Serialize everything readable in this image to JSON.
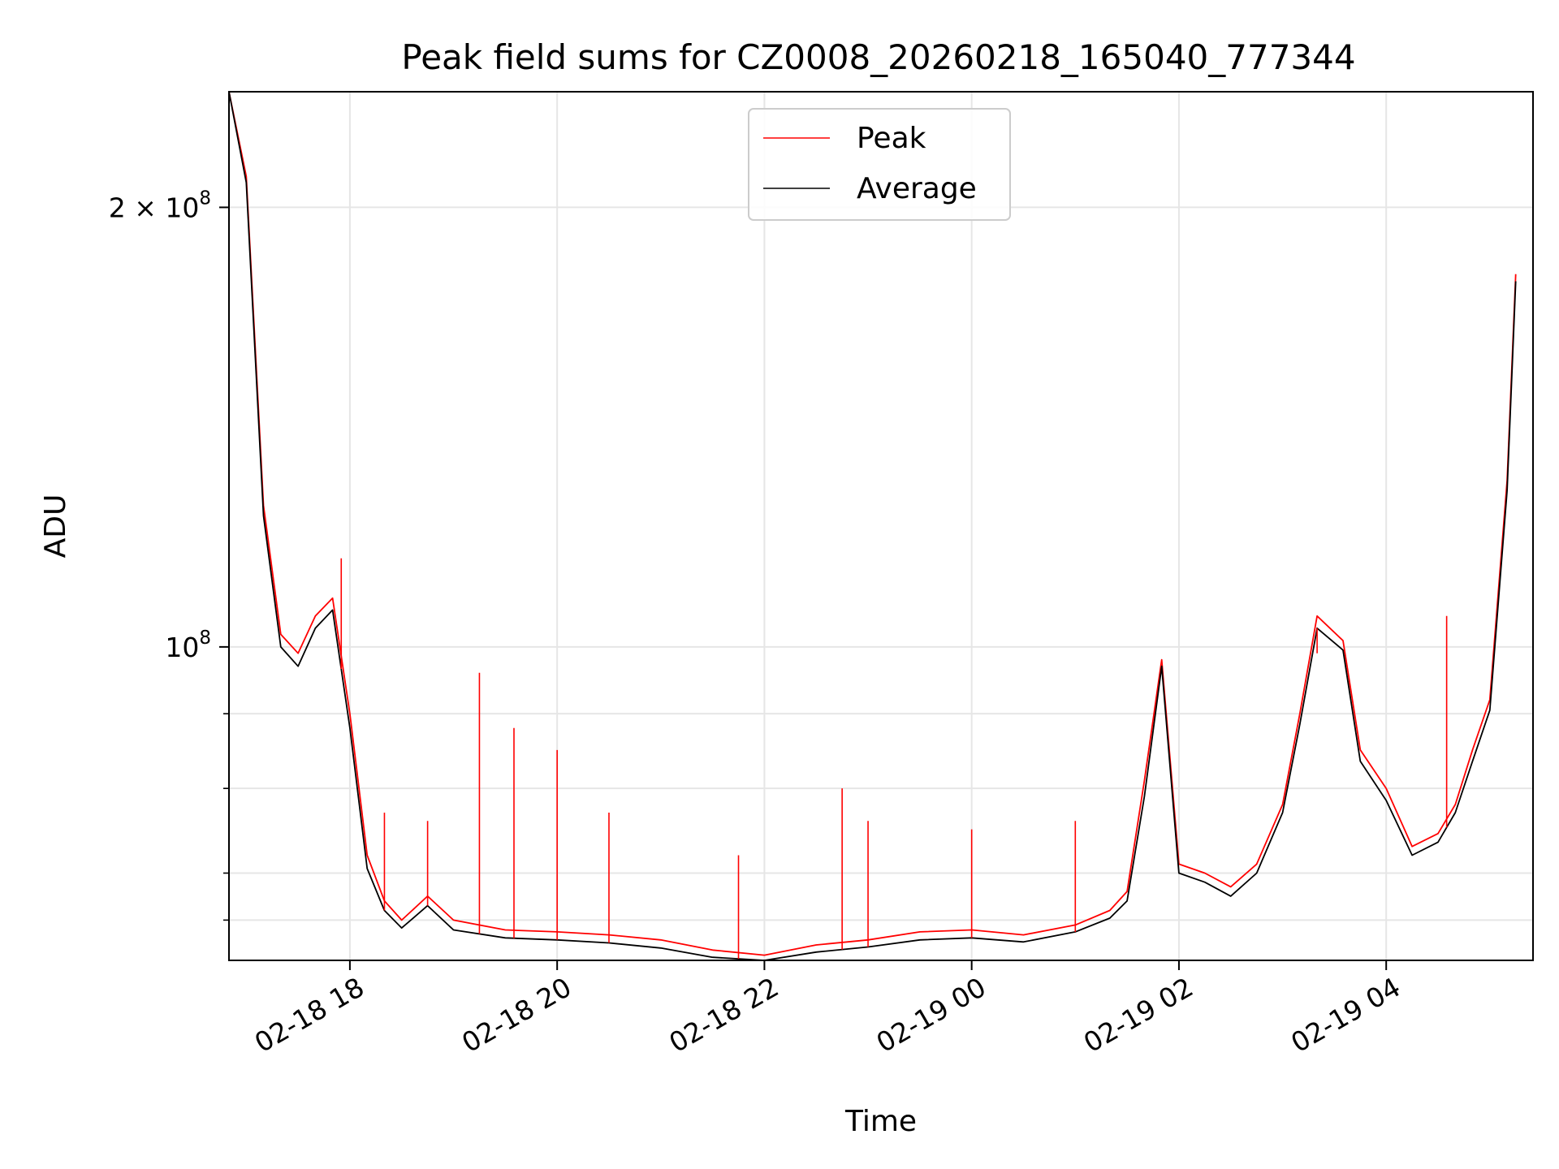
{
  "chart_data": {
    "type": "line",
    "title": "Peak field sums for CZ0008_20260218_165040_777344",
    "xlabel": "Time",
    "ylabel": "ADU",
    "x_axis": "datetime",
    "xlim": [
      "2026-02-18 16:50",
      "2026-02-19 05:25"
    ],
    "y_scale": "log",
    "ylim": [
      61000000,
      240000000
    ],
    "x_ticks": [
      {
        "value": "2026-02-18 18:00",
        "label": "02-18 18"
      },
      {
        "value": "2026-02-18 20:00",
        "label": "02-18 20"
      },
      {
        "value": "2026-02-18 22:00",
        "label": "02-18 22"
      },
      {
        "value": "2026-02-19 00:00",
        "label": "02-19 00"
      },
      {
        "value": "2026-02-19 02:00",
        "label": "02-19 02"
      },
      {
        "value": "2026-02-19 04:00",
        "label": "02-19 04"
      }
    ],
    "y_major_ticks": [
      {
        "value": 100000000,
        "base": "10",
        "exp": "8"
      },
      {
        "value": 200000000,
        "base": "2 × 10",
        "exp": "8"
      }
    ],
    "y_minor_ticks": [
      65000000,
      70000000,
      80000000,
      90000000
    ],
    "grid": true,
    "legend": {
      "position": "top-center",
      "entries": [
        "Peak",
        "Average"
      ]
    },
    "series": [
      {
        "name": "Peak",
        "color": "#ff0000",
        "x": [
          "2026-02-18 16:50",
          "2026-02-18 17:00",
          "2026-02-18 17:10",
          "2026-02-18 17:20",
          "2026-02-18 17:30",
          "2026-02-18 17:40",
          "2026-02-18 17:50",
          "2026-02-18 18:00",
          "2026-02-18 18:10",
          "2026-02-18 18:20",
          "2026-02-18 18:30",
          "2026-02-18 18:45",
          "2026-02-18 19:00",
          "2026-02-18 19:30",
          "2026-02-18 20:00",
          "2026-02-18 20:30",
          "2026-02-18 21:00",
          "2026-02-18 21:30",
          "2026-02-18 22:00",
          "2026-02-18 22:30",
          "2026-02-18 23:00",
          "2026-02-18 23:30",
          "2026-02-19 00:00",
          "2026-02-19 00:30",
          "2026-02-19 01:00",
          "2026-02-19 01:20",
          "2026-02-19 01:30",
          "2026-02-19 01:40",
          "2026-02-19 01:50",
          "2026-02-19 02:00",
          "2026-02-19 02:15",
          "2026-02-19 02:30",
          "2026-02-19 02:45",
          "2026-02-19 03:00",
          "2026-02-19 03:10",
          "2026-02-19 03:20",
          "2026-02-19 03:35",
          "2026-02-19 03:45",
          "2026-02-19 04:00",
          "2026-02-19 04:15",
          "2026-02-19 04:30",
          "2026-02-19 04:40",
          "2026-02-19 04:50",
          "2026-02-19 05:00",
          "2026-02-19 05:10",
          "2026-02-19 05:15"
        ],
        "values": [
          240000000,
          210000000,
          125000000,
          102000000,
          99000000,
          105000000,
          108000000,
          90000000,
          72000000,
          67000000,
          65000000,
          67500000,
          65000000,
          64000000,
          63800000,
          63500000,
          63000000,
          62000000,
          61500000,
          62500000,
          63000000,
          63800000,
          64000000,
          63500000,
          64500000,
          66000000,
          68000000,
          81000000,
          98000000,
          71000000,
          70000000,
          68500000,
          71000000,
          78000000,
          90000000,
          105000000,
          101000000,
          85000000,
          80000000,
          73000000,
          74500000,
          78000000,
          85000000,
          92000000,
          130000000,
          180000000
        ],
        "spikes": [
          {
            "x": "2026-02-18 17:55",
            "y": 115000000
          },
          {
            "x": "2026-02-18 18:20",
            "y": 77000000
          },
          {
            "x": "2026-02-18 18:45",
            "y": 76000000
          },
          {
            "x": "2026-02-18 19:15",
            "y": 96000000
          },
          {
            "x": "2026-02-18 19:35",
            "y": 88000000
          },
          {
            "x": "2026-02-18 20:00",
            "y": 85000000
          },
          {
            "x": "2026-02-18 20:30",
            "y": 77000000
          },
          {
            "x": "2026-02-18 21:45",
            "y": 72000000
          },
          {
            "x": "2026-02-18 22:45",
            "y": 80000000
          },
          {
            "x": "2026-02-18 23:00",
            "y": 76000000
          },
          {
            "x": "2026-02-19 00:00",
            "y": 75000000
          },
          {
            "x": "2026-02-19 01:00",
            "y": 76000000
          },
          {
            "x": "2026-02-19 03:20",
            "y": 99000000
          },
          {
            "x": "2026-02-19 04:35",
            "y": 105000000
          }
        ]
      },
      {
        "name": "Average",
        "color": "#000000",
        "x": [
          "2026-02-18 16:50",
          "2026-02-18 17:00",
          "2026-02-18 17:10",
          "2026-02-18 17:20",
          "2026-02-18 17:30",
          "2026-02-18 17:40",
          "2026-02-18 17:50",
          "2026-02-18 18:00",
          "2026-02-18 18:10",
          "2026-02-18 18:20",
          "2026-02-18 18:30",
          "2026-02-18 18:45",
          "2026-02-18 19:00",
          "2026-02-18 19:30",
          "2026-02-18 20:00",
          "2026-02-18 20:30",
          "2026-02-18 21:00",
          "2026-02-18 21:30",
          "2026-02-18 22:00",
          "2026-02-18 22:30",
          "2026-02-18 23:00",
          "2026-02-18 23:30",
          "2026-02-19 00:00",
          "2026-02-19 00:30",
          "2026-02-19 01:00",
          "2026-02-19 01:20",
          "2026-02-19 01:30",
          "2026-02-19 01:40",
          "2026-02-19 01:50",
          "2026-02-19 02:00",
          "2026-02-19 02:15",
          "2026-02-19 02:30",
          "2026-02-19 02:45",
          "2026-02-19 03:00",
          "2026-02-19 03:10",
          "2026-02-19 03:20",
          "2026-02-19 03:35",
          "2026-02-19 03:45",
          "2026-02-19 04:00",
          "2026-02-19 04:15",
          "2026-02-19 04:30",
          "2026-02-19 04:40",
          "2026-02-19 04:50",
          "2026-02-19 05:00",
          "2026-02-19 05:10",
          "2026-02-19 05:15"
        ],
        "values": [
          240000000,
          208000000,
          123000000,
          100000000,
          97000000,
          103000000,
          106000000,
          88000000,
          70500000,
          66000000,
          64200000,
          66500000,
          64000000,
          63200000,
          63000000,
          62700000,
          62200000,
          61300000,
          61000000,
          61800000,
          62300000,
          63000000,
          63200000,
          62800000,
          63800000,
          65200000,
          67000000,
          79000000,
          97000000,
          70000000,
          69000000,
          67500000,
          70000000,
          77000000,
          88500000,
          103000000,
          99500000,
          83500000,
          78500000,
          72000000,
          73500000,
          77000000,
          83500000,
          90500000,
          128000000,
          178000000
        ]
      }
    ]
  }
}
